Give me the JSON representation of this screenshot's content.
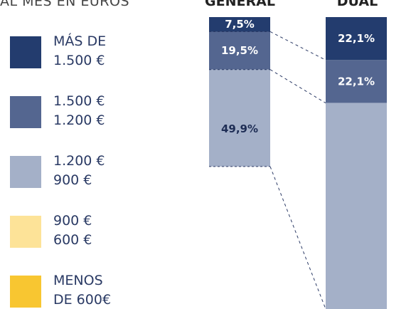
{
  "legend": {
    "title": "AL MES EN EUROS",
    "items": [
      {
        "line1": "MÁS DE",
        "line2": "1.500 €",
        "color": "#233c6e"
      },
      {
        "line1": "1.500 €",
        "line2": "1.200 €",
        "color": "#546690"
      },
      {
        "line1": "1.200 €",
        "line2": "900 €",
        "color": "#a4b0c8"
      },
      {
        "line1": "900 €",
        "line2": "600 €",
        "color": "#fde398"
      },
      {
        "line1": "MENOS",
        "line2": "DE 600€",
        "color": "#f8c631"
      }
    ]
  },
  "chart_data": {
    "type": "bar",
    "stacked": true,
    "categories": [
      "GENERAL",
      "DUAL"
    ],
    "series": [
      {
        "name": "MÁS DE 1.500 €",
        "color": "#233c6e",
        "values": [
          7.5,
          22.1
        ],
        "labels": [
          "7,5%",
          "22,1%"
        ]
      },
      {
        "name": "1.500 € 1.200 €",
        "color": "#546690",
        "values": [
          19.5,
          22.1
        ],
        "labels": [
          "19,5%",
          "22,1%"
        ]
      },
      {
        "name": "1.200 € 900 €",
        "color": "#a4b0c8",
        "values": [
          49.9,
          null
        ],
        "labels": [
          "49,9%",
          ""
        ]
      }
    ]
  }
}
